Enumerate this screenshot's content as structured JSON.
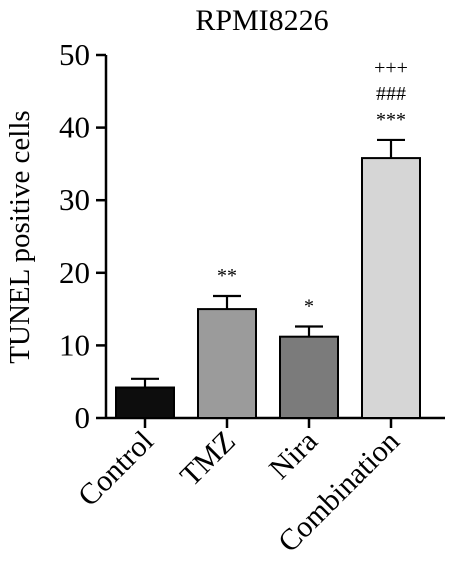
{
  "chart_data": {
    "type": "bar",
    "title": "RPMI8226",
    "xlabel": "",
    "ylabel": "TUNEL positive cells",
    "ylim": [
      0,
      50
    ],
    "yticks": [
      0,
      10,
      20,
      30,
      40,
      50
    ],
    "categories": [
      "Control",
      "TMZ",
      "Nira",
      "Combination"
    ],
    "values": [
      4.2,
      15.0,
      11.2,
      35.8
    ],
    "errors": [
      1.2,
      1.8,
      1.4,
      2.5
    ],
    "colors": [
      "#0d0d0d",
      "#9b9b9b",
      "#7b7b7b",
      "#d6d6d6"
    ],
    "annotations": [
      [],
      [
        "**"
      ],
      [
        "*"
      ],
      [
        "***",
        "###",
        "+++"
      ]
    ],
    "grid": false,
    "legend": "none"
  }
}
